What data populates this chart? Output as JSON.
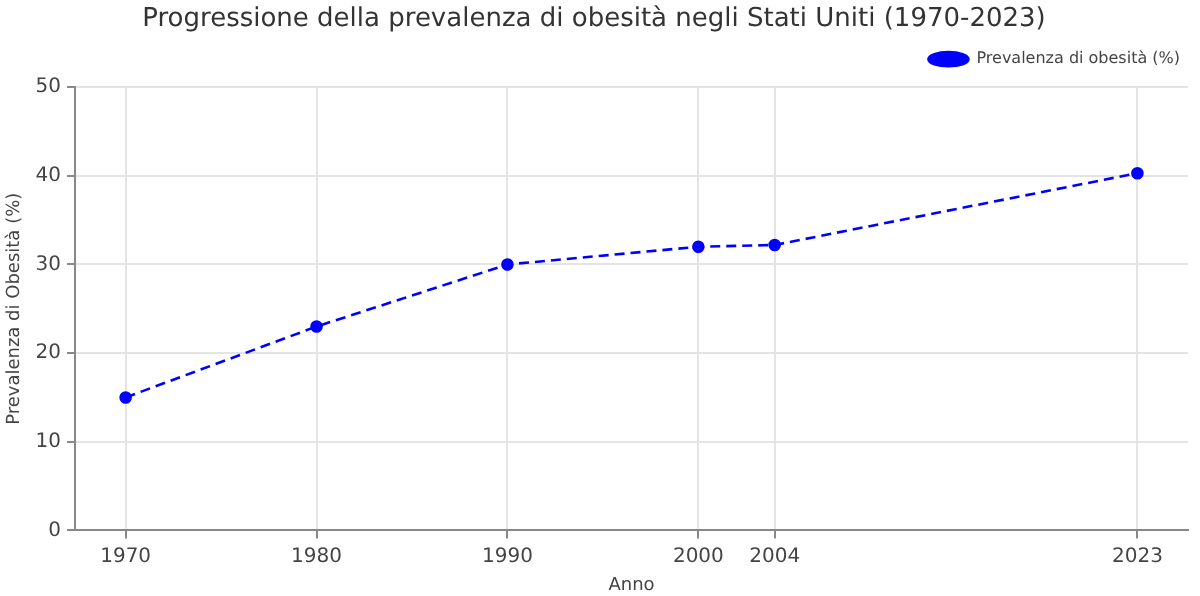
{
  "chart_data": {
    "type": "line",
    "title": "Progressione della prevalenza di obesità negli Stati Uniti (1970-2023)",
    "xlabel": "Anno",
    "ylabel": "Prevalenza di Obesità (%)",
    "x": [
      1970,
      1980,
      1990,
      2000,
      2004,
      2023
    ],
    "series": [
      {
        "name": "Prevalenza di obesità (%)",
        "color": "#0000ff",
        "values": [
          15,
          23,
          30,
          32,
          32.2,
          40.3
        ]
      }
    ],
    "xlim": [
      1967.35,
      2025.65
    ],
    "xticks": [
      1970,
      1980,
      1990,
      2000,
      2004,
      2023
    ],
    "ylim": [
      0,
      50
    ],
    "yticks": [
      0,
      10,
      20,
      30,
      40,
      50
    ],
    "grid": true,
    "legend": "top right",
    "marker": "circle",
    "line_style": "dashed"
  }
}
